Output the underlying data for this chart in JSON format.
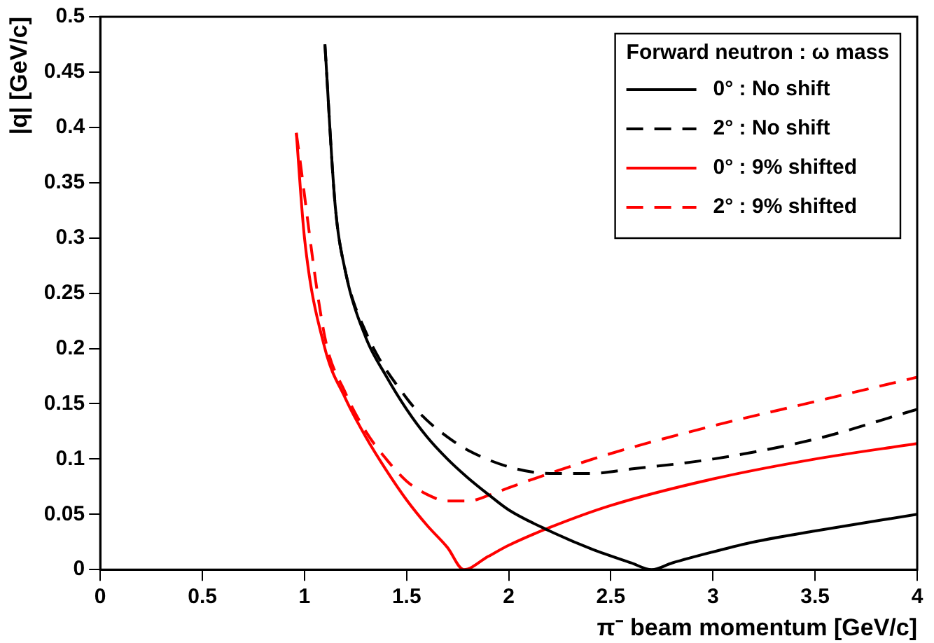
{
  "chart_data": {
    "type": "line",
    "xlabel": "π⁻ beam momentum [GeV/c]",
    "ylabel": "|q| [GeV/c]",
    "legend_title": "Forward neutron : ω mass",
    "xlim": [
      0,
      4
    ],
    "xticks": [
      0,
      0.5,
      1,
      1.5,
      2,
      2.5,
      3,
      3.5,
      4
    ],
    "ylim": [
      0,
      0.5
    ],
    "yticks": [
      0,
      0.05,
      0.1,
      0.15,
      0.2,
      0.25,
      0.3,
      0.35,
      0.4,
      0.45,
      0.5
    ],
    "grid": false,
    "legend": "top right",
    "marker": "none",
    "series": [
      {
        "name": "0° : No shift",
        "color": "#000000",
        "line_style": "solid",
        "x": [
          1.1,
          1.15,
          1.2,
          1.3,
          1.4,
          1.5,
          1.6,
          1.7,
          1.8,
          1.9,
          2.0,
          2.2,
          2.4,
          2.6,
          2.7,
          2.8,
          3.0,
          3.2,
          3.5,
          4.0
        ],
        "values": [
          0.475,
          0.33,
          0.27,
          0.21,
          0.175,
          0.145,
          0.12,
          0.1,
          0.083,
          0.068,
          0.054,
          0.035,
          0.019,
          0.006,
          0,
          0.006,
          0.016,
          0.025,
          0.035,
          0.05
        ]
      },
      {
        "name": "2° : No shift",
        "color": "#000000",
        "line_style": "dashed",
        "x": [
          1.1,
          1.15,
          1.2,
          1.3,
          1.5,
          1.6,
          1.7,
          1.8,
          2.0,
          2.2,
          2.4,
          2.6,
          3.0,
          3.5,
          4.0
        ],
        "values": [
          0.475,
          0.33,
          0.27,
          0.215,
          0.155,
          0.135,
          0.12,
          0.108,
          0.093,
          0.087,
          0.087,
          0.091,
          0.1,
          0.118,
          0.145
        ]
      },
      {
        "name": "0° : 9% shifted",
        "color": "#ff0000",
        "line_style": "solid",
        "x": [
          0.96,
          1.0,
          1.1,
          1.2,
          1.3,
          1.4,
          1.5,
          1.6,
          1.7,
          1.78,
          1.9,
          2.0,
          2.2,
          2.5,
          3.0,
          3.5,
          4.0
        ],
        "values": [
          0.395,
          0.3,
          0.2,
          0.155,
          0.12,
          0.09,
          0.063,
          0.04,
          0.02,
          0,
          0.012,
          0.022,
          0.038,
          0.058,
          0.082,
          0.1,
          0.114
        ]
      },
      {
        "name": "2° : 9% shifted",
        "color": "#ff0000",
        "line_style": "dashed",
        "x": [
          0.96,
          1.1,
          1.2,
          1.3,
          1.4,
          1.5,
          1.6,
          1.7,
          1.8,
          1.9,
          2.0,
          2.2,
          2.5,
          3.0,
          3.5,
          4.0
        ],
        "values": [
          0.395,
          0.21,
          0.16,
          0.125,
          0.1,
          0.08,
          0.068,
          0.062,
          0.062,
          0.067,
          0.074,
          0.087,
          0.105,
          0.13,
          0.152,
          0.174
        ]
      }
    ]
  }
}
